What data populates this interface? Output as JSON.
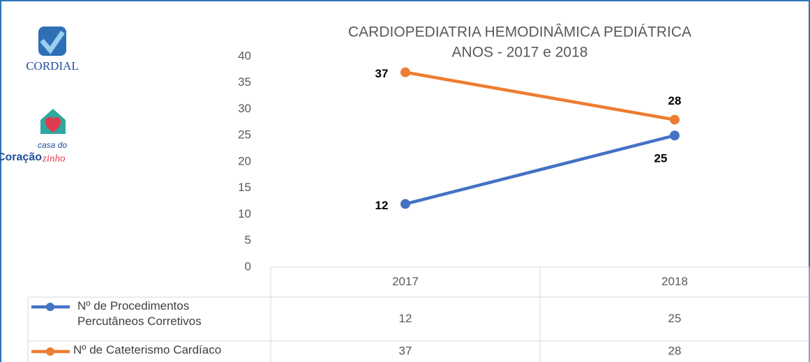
{
  "logos": [
    "CORDIAL",
    "casa do",
    "Coração",
    "zinho"
  ],
  "chart_data": {
    "type": "line",
    "title": "CARDIOPEDIATRIA HEMODINÂMICA PEDIÁTRICA",
    "subtitle": "ANOS - 2017 e 2018",
    "categories": [
      "2017",
      "2018"
    ],
    "series": [
      {
        "name": "Nº de Procedimentos Percutâneos Corretivos",
        "color": "#4472c4",
        "values": [
          12,
          25
        ]
      },
      {
        "name": "Nº de Cateterismo Cardíaco",
        "color": "#ed7d31",
        "values": [
          37,
          28
        ]
      }
    ],
    "ylim": [
      0,
      40
    ],
    "yticks": [
      0,
      5,
      10,
      15,
      20,
      25,
      30,
      35,
      40
    ],
    "grid": false,
    "data_table": true
  }
}
